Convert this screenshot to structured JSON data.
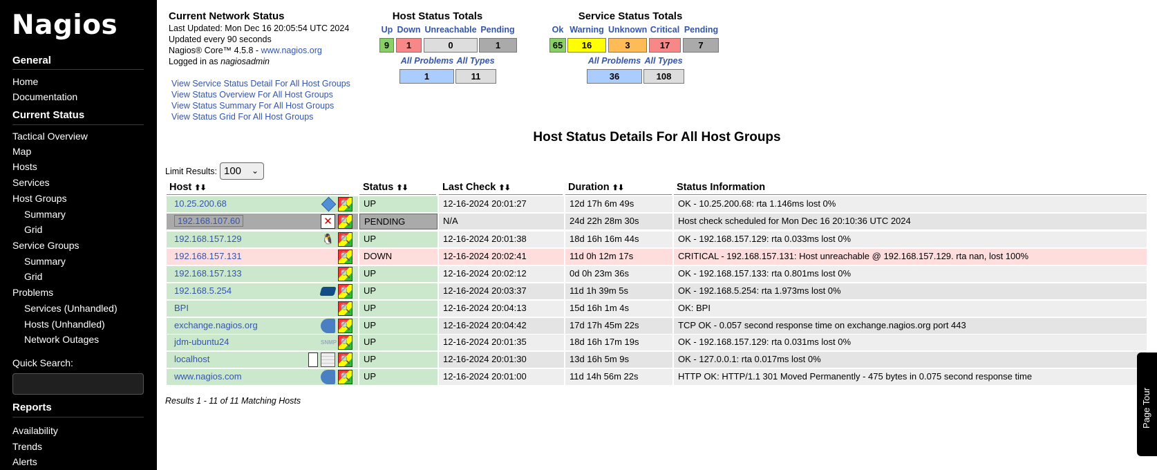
{
  "sidebar": {
    "logo": "Nagios",
    "general": {
      "heading": "General",
      "items": [
        "Home",
        "Documentation"
      ]
    },
    "current_status": {
      "heading": "Current Status",
      "items": [
        "Tactical Overview",
        "Map",
        "Hosts",
        "Services",
        "Host Groups",
        "Summary",
        "Grid",
        "Service Groups",
        "Summary",
        "Grid",
        "Problems",
        "Services (Unhandled)",
        "Hosts (Unhandled)",
        "Network Outages"
      ]
    },
    "quick_search_label": "Quick Search:",
    "reports": {
      "heading": "Reports",
      "items": [
        "Availability",
        "Trends",
        "Alerts"
      ]
    }
  },
  "info": {
    "title": "Current Network Status",
    "last_updated": "Last Updated: Mon Dec 16 20:05:54 UTC 2024",
    "update_interval": "Updated every 90 seconds",
    "version_prefix": "Nagios® Core™ 4.5.8 - ",
    "version_link": "www.nagios.org",
    "logged_in_prefix": "Logged in as ",
    "logged_in_user": "nagiosadmin",
    "view_links": [
      "View Service Status Detail For All Host Groups",
      "View Status Overview For All Host Groups",
      "View Status Summary For All Host Groups",
      "View Status Grid For All Host Groups"
    ]
  },
  "host_totals": {
    "title": "Host Status Totals",
    "headers": [
      "Up",
      "Down",
      "Unreachable",
      "Pending"
    ],
    "values": [
      "9",
      "1",
      "0",
      "1"
    ],
    "colors": [
      "#88d066",
      "#f88888",
      "#dddddd",
      "#aaaaaa"
    ],
    "summary_headers": [
      "All Problems",
      "All Types"
    ],
    "summary_values": [
      "1",
      "11"
    ],
    "summary_colors": [
      "#aaccff",
      "#dddddd"
    ]
  },
  "service_totals": {
    "title": "Service Status Totals",
    "headers": [
      "Ok",
      "Warning",
      "Unknown",
      "Critical",
      "Pending"
    ],
    "values": [
      "65",
      "16",
      "3",
      "17",
      "7"
    ],
    "colors": [
      "#88d066",
      "#ffff00",
      "#ffbb55",
      "#f88888",
      "#aaaaaa"
    ],
    "summary_headers": [
      "All Problems",
      "All Types"
    ],
    "summary_values": [
      "36",
      "108"
    ],
    "summary_colors": [
      "#aaccff",
      "#dddddd"
    ]
  },
  "details": {
    "title": "Host Status Details For All Host Groups",
    "limit_label": "Limit Results:",
    "limit_value": "100",
    "columns": [
      "Host",
      "Status",
      "Last Check",
      "Duration",
      "Status Information"
    ],
    "rows": [
      {
        "host": "10.25.200.68",
        "status": "UP",
        "last_check": "12-16-2024 20:01:27",
        "duration": "12d 17h 6m 49s",
        "info": "OK - 10.25.200.68: rta 1.146ms lost 0%",
        "state": "up",
        "icons": [
          "diamond-icon",
          "extinfo-icon"
        ]
      },
      {
        "host": "192.168.107.60",
        "status": "PENDING",
        "last_check": "N/A",
        "duration": "24d 22h 28m 30s",
        "info": "Host check scheduled for Mon Dec 16 20:10:36 UTC 2024",
        "state": "pending",
        "icons": [
          "notifications-disabled-icon",
          "extinfo-icon"
        ]
      },
      {
        "host": "192.168.157.129",
        "status": "UP",
        "last_check": "12-16-2024 20:01:38",
        "duration": "18d 16h 16m 44s",
        "info": "OK - 192.168.157.129: rta 0.033ms lost 0%",
        "state": "up",
        "icons": [
          "linux-snmp-icon",
          "extinfo-icon"
        ]
      },
      {
        "host": "192.168.157.131",
        "status": "DOWN",
        "last_check": "12-16-2024 20:02:41",
        "duration": "11d 0h 12m 17s",
        "info": "CRITICAL - 192.168.157.131: Host unreachable @ 192.168.157.129. rta nan, lost 100%",
        "state": "down",
        "icons": [
          "extinfo-icon"
        ]
      },
      {
        "host": "192.168.157.133",
        "status": "UP",
        "last_check": "12-16-2024 20:02:12",
        "duration": "0d 0h 23m 36s",
        "info": "OK - 192.168.157.133: rta 0.801ms lost 0%",
        "state": "up",
        "icons": [
          "extinfo-icon"
        ]
      },
      {
        "host": "192.168.5.254",
        "status": "UP",
        "last_check": "12-16-2024 20:03:37",
        "duration": "11d 1h 39m 5s",
        "info": "OK - 192.168.5.254: rta 1.973ms lost 0%",
        "state": "up",
        "icons": [
          "switch-icon",
          "extinfo-icon"
        ]
      },
      {
        "host": "BPI",
        "status": "UP",
        "last_check": "12-16-2024 20:04:13",
        "duration": "15d 16h 1m 4s",
        "info": "OK: BPI",
        "state": "up",
        "icons": [
          "extinfo-icon"
        ]
      },
      {
        "host": "exchange.nagios.org",
        "status": "UP",
        "last_check": "12-16-2024 20:04:42",
        "duration": "17d 17h 45m 22s",
        "info": "TCP OK - 0.057 second response time on exchange.nagios.org port 443",
        "state": "up",
        "icons": [
          "server-icon",
          "extinfo-icon"
        ]
      },
      {
        "host": "jdm-ubuntu24",
        "status": "UP",
        "last_check": "12-16-2024 20:01:35",
        "duration": "18d 16h 17m 19s",
        "info": "OK - 192.168.157.129: rta 0.031ms lost 0%",
        "state": "up",
        "icons": [
          "snmp-icon",
          "extinfo-icon"
        ]
      },
      {
        "host": "localhost",
        "status": "UP",
        "last_check": "12-16-2024 20:01:30",
        "duration": "13d 16h 5m 9s",
        "info": "OK - 127.0.0.1: rta 0.017ms lost 0%",
        "state": "up",
        "icons": [
          "notes-icon",
          "graph-icon",
          "extinfo-icon"
        ]
      },
      {
        "host": "www.nagios.com",
        "status": "UP",
        "last_check": "12-16-2024 20:01:00",
        "duration": "11d 14h 56m 22s",
        "info": "HTTP OK: HTTP/1.1 301 Moved Permanently - 475 bytes in 0.075 second response time",
        "state": "up",
        "icons": [
          "server-icon",
          "extinfo-icon"
        ]
      }
    ],
    "results_text": "Results 1 - 11 of 11 Matching Hosts"
  },
  "page_tour": "Page Tour",
  "colors": {
    "up_cell": "#cce8cc",
    "up_row_odd": "#eeeeee",
    "up_row_even": "#e4e4e4",
    "down_row": "#ffdddd",
    "pending_cell": "#aaaaaa",
    "link": "#3355aa"
  }
}
